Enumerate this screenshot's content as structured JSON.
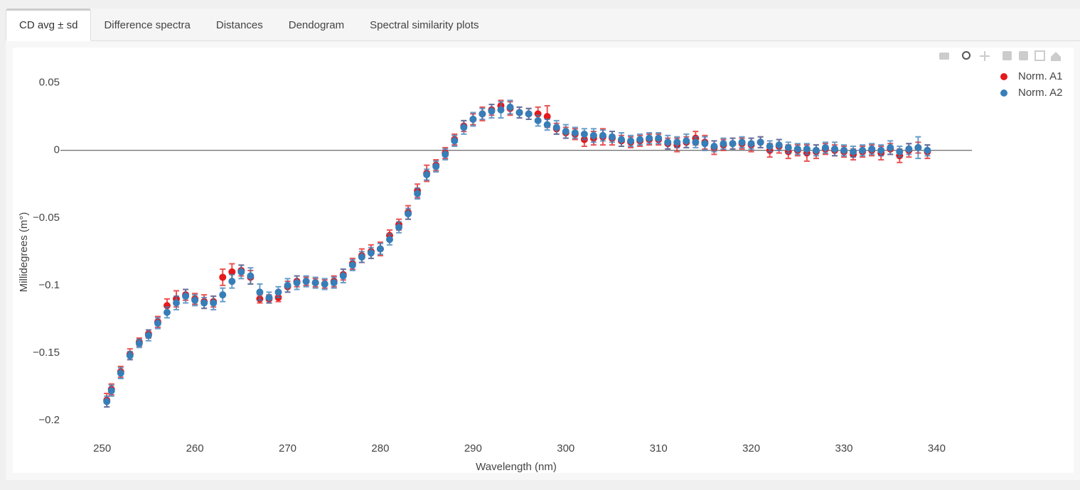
{
  "tabs": [
    "CD avg ± sd",
    "Difference spectra",
    "Distances",
    "Dendogram",
    "Spectral similarity plots"
  ],
  "chart_data": {
    "type": "scatter",
    "x_label": "Wavelength (nm)",
    "y_label": "Millidegrees (m°)",
    "xlim": [
      245.5,
      343.8
    ],
    "ylim": [
      -0.2105,
      0.064
    ],
    "xticks": [
      250,
      260,
      270,
      280,
      290,
      300,
      310,
      320,
      330,
      340
    ],
    "yticks": [
      {
        "value": -0.2,
        "label": "−0.2"
      },
      {
        "value": -0.15,
        "label": "−0.15"
      },
      {
        "value": -0.1,
        "label": "−0.1"
      },
      {
        "value": -0.05,
        "label": "−0.05"
      },
      0,
      0.05
    ],
    "grid": false,
    "zeroline": true,
    "legend": "top-right",
    "x": [
      250.5,
      251,
      252,
      253,
      254,
      255,
      256,
      257,
      258,
      259,
      260,
      261,
      262,
      263,
      264,
      265,
      266,
      267,
      268,
      269,
      270,
      271,
      272,
      273,
      274,
      275,
      276,
      277,
      278,
      279,
      280,
      281,
      282,
      283,
      284,
      285,
      286,
      287,
      288,
      289,
      290,
      291,
      292,
      293,
      294,
      295,
      296,
      297,
      298,
      299,
      300,
      301,
      302,
      303,
      304,
      305,
      306,
      307,
      308,
      309,
      310,
      311,
      312,
      313,
      314,
      315,
      316,
      317,
      318,
      319,
      320,
      321,
      322,
      323,
      324,
      325,
      326,
      327,
      328,
      329,
      330,
      331,
      332,
      333,
      334,
      335,
      336,
      337,
      338,
      339
    ],
    "series": [
      {
        "name": "Norm. A1",
        "color": "#e41a1c",
        "values": [
          -0.185,
          -0.177,
          -0.164,
          -0.151,
          -0.142,
          -0.136,
          -0.127,
          -0.115,
          -0.11,
          -0.107,
          -0.11,
          -0.112,
          -0.112,
          -0.094,
          -0.09,
          -0.089,
          -0.094,
          -0.11,
          -0.11,
          -0.109,
          -0.101,
          -0.097,
          -0.097,
          -0.098,
          -0.099,
          -0.097,
          -0.092,
          -0.084,
          -0.078,
          -0.075,
          -0.073,
          -0.063,
          -0.055,
          -0.046,
          -0.03,
          -0.017,
          -0.011,
          -0.002,
          0.008,
          0.018,
          0.023,
          0.027,
          0.03,
          0.033,
          0.031,
          0.028,
          0.027,
          0.027,
          0.025,
          0.016,
          0.013,
          0.012,
          0.008,
          0.009,
          0.01,
          0.009,
          0.007,
          0.006,
          0.007,
          0.008,
          0.008,
          0.005,
          0.004,
          0.006,
          0.009,
          0.006,
          0.002,
          0.004,
          0.005,
          0.005,
          0.004,
          0.006,
          0.0,
          0.003,
          -0.001,
          0.0,
          -0.002,
          -0.001,
          0.001,
          0.0,
          -0.001,
          -0.003,
          -0.001,
          0.0,
          -0.002,
          0.001,
          -0.004,
          0.0,
          0.002,
          -0.001
        ],
        "errors": [
          0.005,
          0.004,
          0.004,
          0.004,
          0.003,
          0.003,
          0.004,
          0.005,
          0.006,
          0.004,
          0.004,
          0.005,
          0.004,
          0.006,
          0.006,
          0.004,
          0.005,
          0.003,
          0.003,
          0.003,
          0.004,
          0.004,
          0.003,
          0.003,
          0.003,
          0.004,
          0.004,
          0.004,
          0.005,
          0.005,
          0.005,
          0.004,
          0.004,
          0.005,
          0.005,
          0.006,
          0.004,
          0.004,
          0.004,
          0.004,
          0.004,
          0.005,
          0.004,
          0.004,
          0.005,
          0.004,
          0.004,
          0.005,
          0.008,
          0.004,
          0.004,
          0.004,
          0.005,
          0.005,
          0.006,
          0.005,
          0.004,
          0.004,
          0.004,
          0.004,
          0.004,
          0.004,
          0.005,
          0.004,
          0.005,
          0.005,
          0.005,
          0.004,
          0.004,
          0.004,
          0.005,
          0.004,
          0.005,
          0.005,
          0.005,
          0.004,
          0.006,
          0.005,
          0.004,
          0.004,
          0.004,
          0.004,
          0.004,
          0.004,
          0.005,
          0.004,
          0.005,
          0.005,
          0.004,
          0.005
        ]
      },
      {
        "name": "Norm. A2",
        "color": "#377eb8",
        "values": [
          -0.186,
          -0.178,
          -0.165,
          -0.152,
          -0.143,
          -0.137,
          -0.128,
          -0.12,
          -0.113,
          -0.108,
          -0.111,
          -0.113,
          -0.113,
          -0.107,
          -0.097,
          -0.09,
          -0.093,
          -0.105,
          -0.109,
          -0.105,
          -0.1,
          -0.098,
          -0.097,
          -0.098,
          -0.099,
          -0.098,
          -0.093,
          -0.085,
          -0.079,
          -0.076,
          -0.073,
          -0.066,
          -0.057,
          -0.047,
          -0.032,
          -0.018,
          -0.012,
          -0.003,
          0.007,
          0.017,
          0.023,
          0.027,
          0.029,
          0.03,
          0.032,
          0.028,
          0.027,
          0.022,
          0.019,
          0.017,
          0.014,
          0.013,
          0.012,
          0.011,
          0.011,
          0.01,
          0.008,
          0.007,
          0.008,
          0.009,
          0.009,
          0.006,
          0.006,
          0.007,
          0.006,
          0.005,
          0.003,
          0.005,
          0.005,
          0.006,
          0.005,
          0.006,
          0.003,
          0.004,
          0.002,
          0.001,
          0.001,
          0.0,
          0.002,
          0.001,
          0.0,
          -0.001,
          0.0,
          0.001,
          0.0,
          0.002,
          -0.001,
          0.001,
          0.002,
          0.0
        ],
        "errors": [
          0.004,
          0.004,
          0.004,
          0.003,
          0.003,
          0.004,
          0.004,
          0.004,
          0.005,
          0.005,
          0.004,
          0.004,
          0.005,
          0.005,
          0.005,
          0.005,
          0.006,
          0.006,
          0.004,
          0.004,
          0.005,
          0.005,
          0.004,
          0.004,
          0.004,
          0.004,
          0.005,
          0.004,
          0.004,
          0.004,
          0.004,
          0.004,
          0.004,
          0.004,
          0.004,
          0.004,
          0.004,
          0.004,
          0.004,
          0.005,
          0.005,
          0.004,
          0.005,
          0.006,
          0.005,
          0.004,
          0.004,
          0.004,
          0.004,
          0.005,
          0.005,
          0.004,
          0.004,
          0.005,
          0.004,
          0.004,
          0.005,
          0.004,
          0.004,
          0.004,
          0.004,
          0.005,
          0.004,
          0.005,
          0.004,
          0.005,
          0.004,
          0.004,
          0.004,
          0.004,
          0.004,
          0.004,
          0.004,
          0.004,
          0.004,
          0.004,
          0.004,
          0.004,
          0.004,
          0.005,
          0.004,
          0.004,
          0.004,
          0.004,
          0.004,
          0.005,
          0.004,
          0.004,
          0.008,
          0.004
        ]
      }
    ]
  }
}
